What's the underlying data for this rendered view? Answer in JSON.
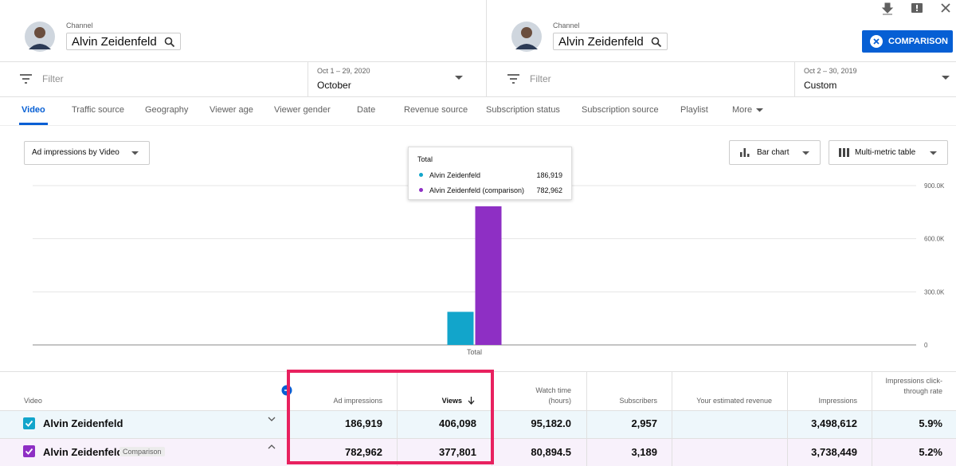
{
  "left_channel": {
    "label": "Channel",
    "name": "Alvin Zeidenfeld"
  },
  "right_channel": {
    "label": "Channel",
    "name": "Alvin Zeidenfeld"
  },
  "comparison_button": "COMPARISON",
  "left_filter": {
    "placeholder": "Filter",
    "date_range": "Oct 1 – 29, 2020",
    "period": "October"
  },
  "right_filter": {
    "placeholder": "Filter",
    "date_range": "Oct 2 – 30, 2019",
    "period": "Custom"
  },
  "tabs": [
    "Video",
    "Traffic source",
    "Geography",
    "Viewer age",
    "Viewer gender",
    "Date",
    "Revenue source",
    "Subscription status",
    "Subscription source",
    "Playlist",
    "More"
  ],
  "metric_dropdown": "Ad impressions by Video",
  "chart_type_dropdown": "Bar chart",
  "table_type_dropdown": "Multi-metric table",
  "tooltip_title": "Total",
  "chart_data": {
    "type": "bar",
    "categories": [
      "Total"
    ],
    "series": [
      {
        "name": "Alvin Zeidenfeld",
        "color": "#12a5cb",
        "values": [
          186919
        ],
        "value_labels": [
          "186,919"
        ]
      },
      {
        "name": "Alvin Zeidenfeld (comparison)",
        "color": "#8e2fc4",
        "values": [
          782962
        ],
        "value_labels": [
          "782,962"
        ]
      }
    ],
    "ylim": [
      0,
      900000
    ],
    "yticks": [
      0,
      {
        "value": 300000,
        "label": "300.0K"
      },
      {
        "value": 600000,
        "label": "600.0K"
      },
      {
        "value": 900000,
        "label": "900.0K"
      }
    ],
    "grid": true
  },
  "table": {
    "columns": {
      "video": "Video",
      "ad_impressions": "Ad impressions",
      "views": "Views",
      "watch_time": "Watch time (hours)",
      "subscribers": "Subscribers",
      "revenue": "Your estimated revenue",
      "impressions": "Impressions",
      "ctr": "Impressions click-through rate"
    },
    "rows": [
      {
        "name": "Alvin Zeidenfeld",
        "ad_impressions": "186,919",
        "views": "406,098",
        "watch_time": "95,182.0",
        "subscribers": "2,957",
        "impressions": "3,498,612",
        "ctr": "5.9%"
      },
      {
        "name": "Alvin Zeidenfeld",
        "badge": "Comparison",
        "ad_impressions": "782,962",
        "views": "377,801",
        "watch_time": "80,894.5",
        "subscribers": "3,189",
        "impressions": "3,738,449",
        "ctr": "5.2%"
      }
    ]
  }
}
